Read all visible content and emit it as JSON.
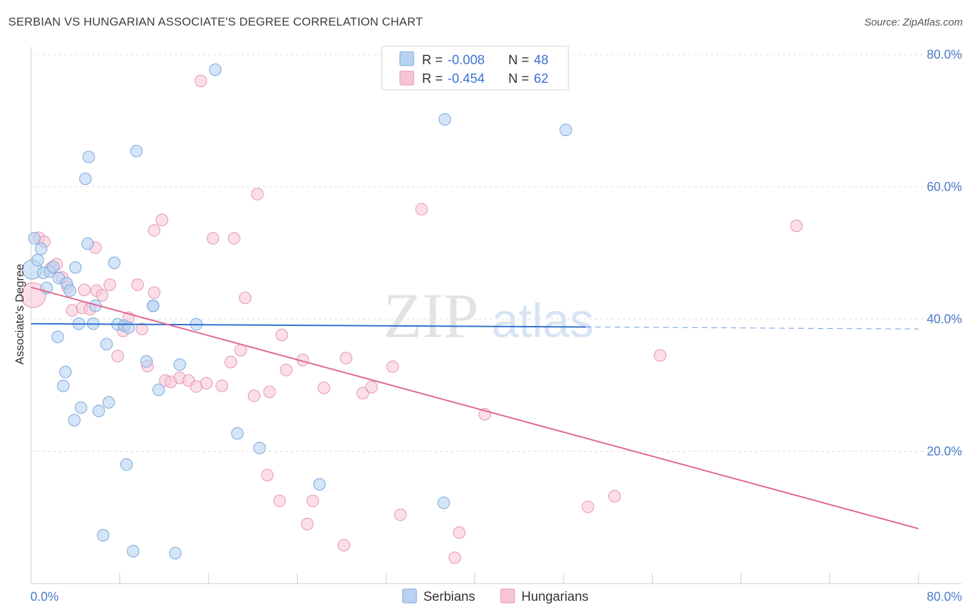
{
  "title": "SERBIAN VS HUNGARIAN ASSOCIATE'S DEGREE CORRELATION CHART",
  "source": "Source: ZipAtlas.com",
  "watermark": {
    "zip": "ZIP",
    "atlas": "atlas"
  },
  "colors": {
    "serbian_fill": "#b8d3f2",
    "serbian_stroke": "#7aa7dc",
    "serbian_line": "#2f6fd0",
    "hungarian_fill": "#f7c4d4",
    "hungarian_stroke": "#e893b0",
    "hungarian_line": "#e0678f",
    "tick_text": "#4a7cc7",
    "grid": "#dddddd"
  },
  "legend_top": {
    "rows": [
      {
        "r_label": "R =",
        "r_value": "-0.008",
        "n_label": "N =",
        "n_value": "48"
      },
      {
        "r_label": "R =",
        "r_value": "-0.454",
        "n_label": "N =",
        "n_value": "62"
      }
    ]
  },
  "legend_bottom": {
    "serbians": "Serbians",
    "hungarians": "Hungarians"
  },
  "chart_data": {
    "type": "scatter",
    "xlabel": "",
    "ylabel": "Associate's Degree",
    "xlim": [
      0,
      80
    ],
    "ylim": [
      0,
      80
    ],
    "x_tick_labels": {
      "left": "0.0%",
      "right": "80.0%"
    },
    "y_ticks": [
      {
        "value": 20,
        "label": "20.0%"
      },
      {
        "value": 40,
        "label": "40.0%"
      },
      {
        "value": 60,
        "label": "60.0%"
      },
      {
        "value": 80,
        "label": "80.0%"
      }
    ],
    "grid": true,
    "series": [
      {
        "name": "Serbians",
        "r": -0.008,
        "n": 48,
        "trend": {
          "x0": 0,
          "y0": 39.3,
          "x1": 50,
          "y1": 38.8,
          "dashed_to": 80,
          "dashed_y": 38.5
        },
        "points": [
          [
            0.1,
            47.5
          ],
          [
            0.3,
            52.2
          ],
          [
            0.6,
            48.9
          ],
          [
            0.9,
            50.6
          ],
          [
            1.1,
            47.0
          ],
          [
            1.4,
            44.7
          ],
          [
            1.7,
            47.2
          ],
          [
            2.0,
            47.9
          ],
          [
            2.5,
            46.2
          ],
          [
            3.2,
            45.4
          ],
          [
            3.5,
            44.3
          ],
          [
            2.4,
            37.3
          ],
          [
            2.9,
            29.9
          ],
          [
            3.1,
            32.0
          ],
          [
            3.9,
            24.7
          ],
          [
            4.5,
            26.6
          ],
          [
            4.3,
            39.3
          ],
          [
            4.0,
            47.8
          ],
          [
            5.1,
            51.4
          ],
          [
            5.2,
            64.5
          ],
          [
            4.9,
            61.2
          ],
          [
            5.6,
            39.3
          ],
          [
            5.8,
            42.0
          ],
          [
            6.1,
            26.1
          ],
          [
            6.5,
            7.3
          ],
          [
            6.8,
            36.2
          ],
          [
            7.0,
            27.4
          ],
          [
            7.5,
            48.5
          ],
          [
            7.8,
            39.2
          ],
          [
            8.4,
            39.0
          ],
          [
            8.6,
            18.0
          ],
          [
            8.8,
            38.7
          ],
          [
            9.2,
            4.9
          ],
          [
            9.5,
            65.4
          ],
          [
            10.4,
            33.6
          ],
          [
            11.0,
            42.0
          ],
          [
            11.5,
            29.3
          ],
          [
            13.0,
            4.6
          ],
          [
            13.4,
            33.1
          ],
          [
            14.9,
            39.2
          ],
          [
            16.6,
            77.7
          ],
          [
            18.6,
            22.7
          ],
          [
            20.6,
            20.5
          ],
          [
            26.0,
            15.0
          ],
          [
            37.2,
            12.2
          ],
          [
            37.3,
            70.2
          ],
          [
            48.2,
            68.6
          ],
          [
            11.0,
            42.0
          ]
        ]
      },
      {
        "name": "Hungarians",
        "r": -0.454,
        "n": 62,
        "trend": {
          "x0": 0,
          "y0": 44.8,
          "x1": 80,
          "y1": 8.3
        },
        "points": [
          [
            0.2,
            43.6
          ],
          [
            0.7,
            52.3
          ],
          [
            1.2,
            51.7
          ],
          [
            1.8,
            47.7
          ],
          [
            2.3,
            48.3
          ],
          [
            2.8,
            46.3
          ],
          [
            3.3,
            44.8
          ],
          [
            3.7,
            41.3
          ],
          [
            4.6,
            41.7
          ],
          [
            4.8,
            44.4
          ],
          [
            5.3,
            41.5
          ],
          [
            5.8,
            50.8
          ],
          [
            5.9,
            44.3
          ],
          [
            6.4,
            43.6
          ],
          [
            7.1,
            45.2
          ],
          [
            7.8,
            34.4
          ],
          [
            8.3,
            38.2
          ],
          [
            8.8,
            40.2
          ],
          [
            9.6,
            45.2
          ],
          [
            10.0,
            38.5
          ],
          [
            10.5,
            32.9
          ],
          [
            11.1,
            53.4
          ],
          [
            11.1,
            44.0
          ],
          [
            11.8,
            55.0
          ],
          [
            12.1,
            30.7
          ],
          [
            12.6,
            30.5
          ],
          [
            13.4,
            31.1
          ],
          [
            14.2,
            30.7
          ],
          [
            14.9,
            29.8
          ],
          [
            15.3,
            76.0
          ],
          [
            15.8,
            30.3
          ],
          [
            16.4,
            52.2
          ],
          [
            17.2,
            29.9
          ],
          [
            18.0,
            33.5
          ],
          [
            18.3,
            52.2
          ],
          [
            18.9,
            35.3
          ],
          [
            19.3,
            43.2
          ],
          [
            20.1,
            28.4
          ],
          [
            20.4,
            58.9
          ],
          [
            21.3,
            16.4
          ],
          [
            21.5,
            29.0
          ],
          [
            22.4,
            12.5
          ],
          [
            22.6,
            37.6
          ],
          [
            23.0,
            32.3
          ],
          [
            24.5,
            33.8
          ],
          [
            24.9,
            9.0
          ],
          [
            25.4,
            12.5
          ],
          [
            26.4,
            29.6
          ],
          [
            28.2,
            5.8
          ],
          [
            28.4,
            34.1
          ],
          [
            29.9,
            28.8
          ],
          [
            30.7,
            29.7
          ],
          [
            32.6,
            32.8
          ],
          [
            33.3,
            10.4
          ],
          [
            35.2,
            56.6
          ],
          [
            38.2,
            3.9
          ],
          [
            38.6,
            7.7
          ],
          [
            40.9,
            25.6
          ],
          [
            50.2,
            11.6
          ],
          [
            52.6,
            13.2
          ],
          [
            56.7,
            34.5
          ],
          [
            69.0,
            54.1
          ]
        ]
      }
    ]
  }
}
